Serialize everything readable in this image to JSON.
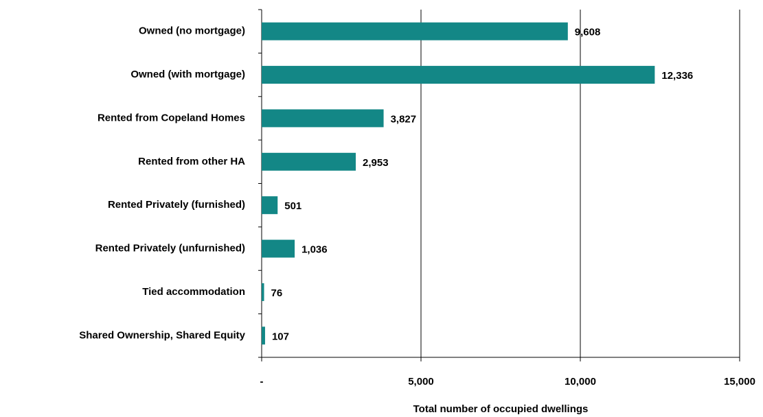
{
  "chart_data": {
    "type": "barh",
    "xlabel": "Total number of occupied dwellings",
    "categories": [
      "Owned (no mortgage)",
      "Owned (with mortgage)",
      "Rented from Copeland Homes",
      "Rented from other HA",
      "Rented Privately (furnished)",
      "Rented Privately (unfurnished)",
      "Tied accommodation",
      "Shared Ownership, Shared Equity"
    ],
    "values": [
      9608,
      12336,
      3827,
      2953,
      501,
      1036,
      76,
      107
    ],
    "value_labels": [
      "9,608",
      "12,336",
      "3,827",
      "2,953",
      "501",
      "1,036",
      "76",
      "107"
    ],
    "color": "#138786",
    "xlim": [
      0,
      15000
    ],
    "xticks": [
      {
        "value": 0,
        "label": "-"
      },
      {
        "value": 5000,
        "label": "5,000"
      },
      {
        "value": 10000,
        "label": "10,000"
      },
      {
        "value": 15000,
        "label": "15,000"
      }
    ],
    "grid": true
  }
}
